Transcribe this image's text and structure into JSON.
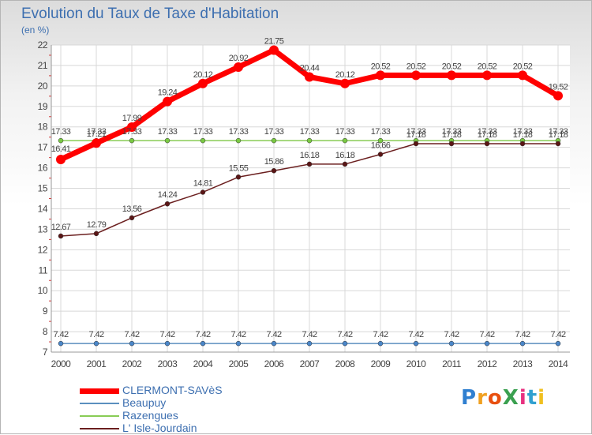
{
  "chart_data": {
    "type": "line",
    "title": "Evolution du Taux de Taxe d'Habitation",
    "subtitle": "(en %)",
    "xlabel": "",
    "ylabel": "",
    "categories": [
      "2000",
      "2001",
      "2002",
      "2003",
      "2004",
      "2005",
      "2006",
      "2007",
      "2008",
      "2009",
      "2010",
      "2011",
      "2012",
      "2013",
      "2014"
    ],
    "y_ticks": [
      7,
      8,
      9,
      10,
      11,
      12,
      13,
      14,
      15,
      16,
      17,
      18,
      19,
      20,
      21,
      22
    ],
    "ylim": [
      7,
      22
    ],
    "grid": true,
    "legend_position": "bottom-left",
    "series": [
      {
        "name": "CLERMONT-SAVèS",
        "color": "#ff0000",
        "values": [
          16.41,
          17.21,
          17.99,
          19.24,
          20.12,
          20.92,
          21.75,
          20.44,
          20.12,
          20.52,
          20.52,
          20.52,
          20.52,
          20.52,
          19.52
        ],
        "labels": [
          "16.41",
          "17.21",
          "17.99",
          "19.24",
          "20.12",
          "20.92",
          "21.75",
          "20.44",
          "20.12",
          "20.52",
          "20.52",
          "20.52",
          "20.52",
          "20.52",
          "19.52"
        ]
      },
      {
        "name": "Beaupuy",
        "color": "#5b8fbf",
        "values": [
          7.42,
          7.42,
          7.42,
          7.42,
          7.42,
          7.42,
          7.42,
          7.42,
          7.42,
          7.42,
          7.42,
          7.42,
          7.42,
          7.42,
          7.42
        ],
        "labels": [
          "7.42",
          "7.42",
          "7.42",
          "7.42",
          "7.42",
          "7.42",
          "7.42",
          "7.42",
          "7.42",
          "7.42",
          "7.42",
          "7.42",
          "7.42",
          "7.42",
          "7.42"
        ]
      },
      {
        "name": "Razengues",
        "color": "#88cc55",
        "values": [
          17.33,
          17.33,
          17.33,
          17.33,
          17.33,
          17.33,
          17.33,
          17.33,
          17.33,
          17.33,
          17.33,
          17.33,
          17.33,
          17.33,
          17.33
        ],
        "labels": [
          "17.33",
          "17.33",
          "17.33",
          "17.33",
          "17.33",
          "17.33",
          "17.33",
          "17.33",
          "17.33",
          "17.33",
          "17.33",
          "17.33",
          "17.33",
          "17.33",
          "17.33"
        ]
      },
      {
        "name": "L' Isle-Jourdain",
        "color": "#6b1f1f",
        "values": [
          12.67,
          12.79,
          13.56,
          14.24,
          14.81,
          15.55,
          15.86,
          16.18,
          16.18,
          16.66,
          17.18,
          17.18,
          17.18,
          17.18,
          17.18
        ],
        "labels": [
          "12.67",
          "12.79",
          "13.56",
          "14.24",
          "14.81",
          "15.55",
          "15.86",
          "16.18",
          "16.18",
          "16.66",
          "17.18",
          "17.18",
          "17.18",
          "17.18",
          "17.18"
        ]
      }
    ]
  },
  "logo": {
    "text": "ProXiti",
    "letters": [
      {
        "ch": "P",
        "color": "#2f7fd0"
      },
      {
        "ch": "r",
        "color": "#f0a020"
      },
      {
        "ch": "o",
        "color": "#e85010"
      },
      {
        "ch": "X",
        "color": "#3aa050"
      },
      {
        "ch": "i",
        "color": "#e83080"
      },
      {
        "ch": "t",
        "color": "#30a0d0"
      },
      {
        "ch": "i",
        "color": "#f0c020"
      }
    ]
  }
}
